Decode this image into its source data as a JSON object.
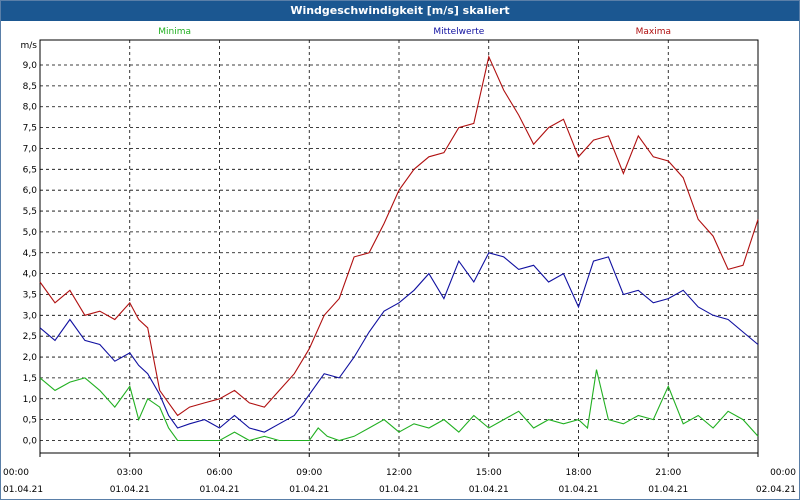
{
  "window": {
    "title": "Windgeschwindigkeit [m/s] skaliert"
  },
  "chart_data": {
    "type": "line",
    "title": "Windgeschwindigkeit [m/s] skaliert",
    "ylabel": "m/s",
    "ylim": [
      -0.3,
      9.6
    ],
    "xlim": [
      0,
      24
    ],
    "yticks": [
      "0,0",
      "0,5",
      "1,0",
      "1,5",
      "2,0",
      "2,5",
      "3,0",
      "3,5",
      "4,0",
      "4,5",
      "5,0",
      "5,5",
      "6,0",
      "6,5",
      "7,0",
      "7,5",
      "8,0",
      "8,5",
      "9,0"
    ],
    "xticks": [
      {
        "time": "00:00",
        "date": "01.04.21"
      },
      {
        "time": "03:00",
        "date": "01.04.21"
      },
      {
        "time": "06:00",
        "date": "01.04.21"
      },
      {
        "time": "09:00",
        "date": "01.04.21"
      },
      {
        "time": "12:00",
        "date": "01.04.21"
      },
      {
        "time": "15:00",
        "date": "01.04.21"
      },
      {
        "time": "18:00",
        "date": "01.04.21"
      },
      {
        "time": "21:00",
        "date": "01.04.21"
      },
      {
        "time": "00:00",
        "date": "02.04.21"
      }
    ],
    "grid": true,
    "legend_position": "top",
    "series": [
      {
        "name": "Minima",
        "color": "#22b022",
        "x": [
          0,
          0.5,
          1,
          1.5,
          2,
          2.5,
          3,
          3.3,
          3.6,
          4,
          4.3,
          4.6,
          5,
          6,
          6.5,
          7,
          7.5,
          8,
          8.5,
          9,
          9.3,
          9.6,
          10,
          10.5,
          11,
          11.5,
          12,
          12.5,
          13,
          13.5,
          14,
          14.5,
          15,
          15.5,
          16,
          16.5,
          17,
          17.5,
          18,
          18.3,
          18.6,
          19,
          19.5,
          20,
          20.5,
          21,
          21.5,
          22,
          22.5,
          23,
          23.5,
          24
        ],
        "values": [
          1.5,
          1.2,
          1.4,
          1.5,
          1.2,
          0.8,
          1.3,
          0.5,
          1.0,
          0.8,
          0.3,
          0.0,
          0.0,
          0.0,
          0.2,
          0.0,
          0.1,
          0.0,
          0.0,
          0.0,
          0.3,
          0.1,
          0.0,
          0.1,
          0.3,
          0.5,
          0.2,
          0.4,
          0.3,
          0.5,
          0.2,
          0.6,
          0.3,
          0.5,
          0.7,
          0.3,
          0.5,
          0.4,
          0.5,
          0.3,
          1.7,
          0.5,
          0.4,
          0.6,
          0.5,
          1.3,
          0.4,
          0.6,
          0.3,
          0.7,
          0.5,
          0.1
        ]
      },
      {
        "name": "Mittelwerte",
        "color": "#1010a0",
        "x": [
          0,
          0.5,
          1,
          1.5,
          2,
          2.5,
          3,
          3.3,
          3.6,
          4,
          4.3,
          4.6,
          5,
          5.5,
          6,
          6.5,
          7,
          7.5,
          8,
          8.5,
          9,
          9.5,
          10,
          10.5,
          11,
          11.5,
          12,
          12.5,
          13,
          13.5,
          14,
          14.5,
          15,
          15.5,
          16,
          16.5,
          17,
          17.5,
          18,
          18.5,
          19,
          19.5,
          20,
          20.5,
          21,
          21.5,
          22,
          22.5,
          23,
          23.5,
          24
        ],
        "values": [
          2.7,
          2.4,
          2.9,
          2.4,
          2.3,
          1.9,
          2.1,
          1.8,
          1.6,
          1.1,
          0.6,
          0.3,
          0.4,
          0.5,
          0.3,
          0.6,
          0.3,
          0.2,
          0.4,
          0.6,
          1.1,
          1.6,
          1.5,
          2.0,
          2.6,
          3.1,
          3.3,
          3.6,
          4.0,
          3.4,
          4.3,
          3.8,
          4.5,
          4.4,
          4.1,
          4.2,
          3.8,
          4.0,
          3.2,
          4.3,
          4.4,
          3.5,
          3.6,
          3.3,
          3.4,
          3.6,
          3.2,
          3.0,
          2.9,
          2.6,
          2.3
        ]
      },
      {
        "name": "Maxima",
        "color": "#b01010",
        "x": [
          0,
          0.5,
          1,
          1.5,
          2,
          2.5,
          3,
          3.3,
          3.6,
          4,
          4.3,
          4.6,
          5,
          5.5,
          6,
          6.5,
          7,
          7.5,
          8,
          8.5,
          9,
          9.5,
          10,
          10.5,
          11,
          11.5,
          12,
          12.5,
          13,
          13.5,
          14,
          14.5,
          15,
          15.5,
          16,
          16.5,
          17,
          17.5,
          18,
          18.5,
          19,
          19.5,
          20,
          20.5,
          21,
          21.5,
          22,
          22.5,
          23,
          23.5,
          24
        ],
        "values": [
          3.8,
          3.3,
          3.6,
          3.0,
          3.1,
          2.9,
          3.3,
          2.9,
          2.7,
          1.2,
          0.9,
          0.6,
          0.8,
          0.9,
          1.0,
          1.2,
          0.9,
          0.8,
          1.2,
          1.6,
          2.2,
          3.0,
          3.4,
          4.4,
          4.5,
          5.2,
          6.0,
          6.5,
          6.8,
          6.9,
          7.5,
          7.6,
          9.2,
          8.4,
          7.8,
          7.1,
          7.5,
          7.7,
          6.8,
          7.2,
          7.3,
          6.4,
          7.3,
          6.8,
          6.7,
          6.3,
          5.3,
          4.9,
          4.1,
          4.2,
          5.3
        ]
      }
    ]
  }
}
